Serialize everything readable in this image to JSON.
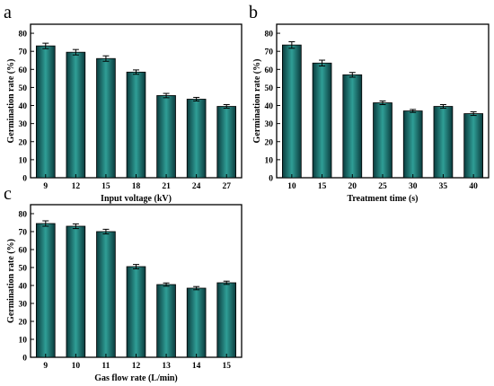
{
  "colors": {
    "bar_dark": "#0a3b3d",
    "bar_mid": "#1b6d6a",
    "bar_light": "#2f9e96",
    "axis": "#000000"
  },
  "chart_data": [
    {
      "type": "bar",
      "panel": "a",
      "title": "",
      "xlabel": "Input voltage (kV)",
      "ylabel": "Germination rate (%)",
      "categories": [
        "9",
        "12",
        "15",
        "18",
        "21",
        "24",
        "27"
      ],
      "values": [
        73,
        69.5,
        66,
        58.5,
        45.5,
        43.5,
        39.5
      ],
      "errors": [
        1.5,
        1.5,
        1.5,
        1.2,
        1.2,
        1.0,
        1.0
      ],
      "ylim": [
        0,
        85
      ],
      "yticks": [
        0,
        10,
        20,
        30,
        40,
        50,
        60,
        70,
        80
      ],
      "grid": false
    },
    {
      "type": "bar",
      "panel": "b",
      "title": "",
      "xlabel": "Treatment time (s)",
      "ylabel": "Germination rate (%)",
      "categories": [
        "10",
        "15",
        "20",
        "25",
        "30",
        "35",
        "40"
      ],
      "values": [
        73.5,
        63.5,
        57,
        41.5,
        37,
        39.5,
        35.5
      ],
      "errors": [
        1.8,
        1.6,
        1.3,
        1.0,
        0.8,
        1.0,
        1.0
      ],
      "ylim": [
        0,
        85
      ],
      "yticks": [
        0,
        10,
        20,
        30,
        40,
        50,
        60,
        70,
        80
      ],
      "grid": false
    },
    {
      "type": "bar",
      "panel": "c",
      "title": "",
      "xlabel": "Gas flow rate (L/min)",
      "ylabel": "Germination rate (%)",
      "categories": [
        "9",
        "10",
        "11",
        "12",
        "13",
        "14",
        "15"
      ],
      "values": [
        74.5,
        73,
        70,
        50.5,
        40.5,
        38.5,
        41.5
      ],
      "errors": [
        1.5,
        1.3,
        1.3,
        1.2,
        0.9,
        0.9,
        0.9
      ],
      "ylim": [
        0,
        85
      ],
      "yticks": [
        0,
        10,
        20,
        30,
        40,
        50,
        60,
        70,
        80
      ],
      "grid": false
    }
  ]
}
